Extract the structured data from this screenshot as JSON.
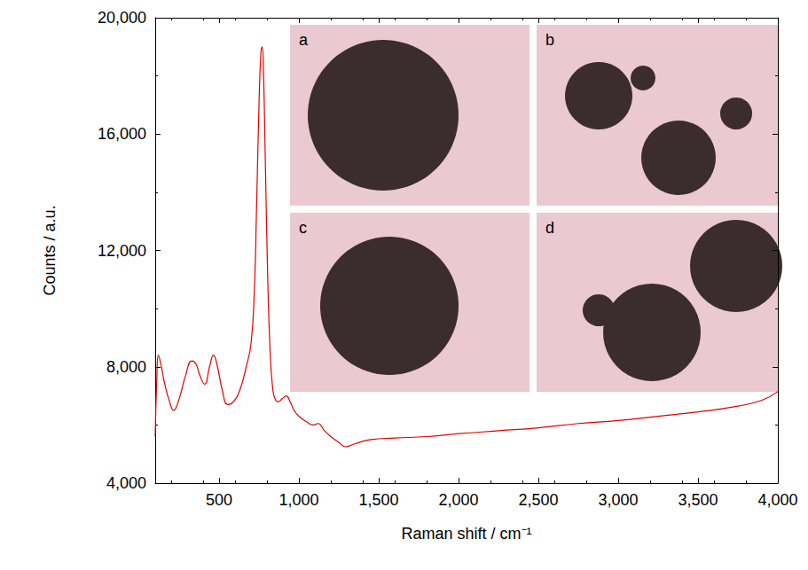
{
  "chart_data": {
    "type": "line",
    "x_label": "Raman shift / cm⁻¹",
    "y_label": "Counts / a.u.",
    "x": [
      100,
      110,
      120,
      135,
      160,
      190,
      215,
      250,
      290,
      330,
      355,
      380,
      410,
      440,
      465,
      490,
      520,
      555,
      590,
      630,
      670,
      700,
      720,
      735,
      750,
      762,
      770,
      778,
      790,
      805,
      820,
      835,
      850,
      870,
      895,
      920,
      945,
      970,
      1000,
      1050,
      1090,
      1120,
      1160,
      1200,
      1250,
      1290,
      1350,
      1450,
      1600,
      1800,
      2000,
      2250,
      2500,
      2750,
      3000,
      3250,
      3500,
      3750,
      3900,
      4000
    ],
    "values": [
      5600,
      7600,
      8400,
      8100,
      7400,
      6800,
      6500,
      6900,
      7700,
      8200,
      8100,
      7700,
      7400,
      8000,
      8400,
      8000,
      7200,
      6700,
      6800,
      7200,
      8000,
      8800,
      10500,
      13500,
      17000,
      18800,
      19000,
      18200,
      15000,
      11000,
      8500,
      7300,
      6900,
      6800,
      6900,
      7000,
      6800,
      6500,
      6300,
      6100,
      6000,
      6050,
      5800,
      5600,
      5400,
      5250,
      5350,
      5500,
      5550,
      5600,
      5700,
      5800,
      5900,
      6050,
      6150,
      6300,
      6450,
      6650,
      6850,
      7150
    ],
    "color": "#e00000",
    "xlim": [
      100,
      4000
    ],
    "xticks": [
      500,
      1000,
      1500,
      2000,
      2500,
      3000,
      3500,
      4000
    ],
    "ylim": [
      4000,
      20000
    ],
    "yticks": [
      4000,
      8000,
      12000,
      16000,
      20000
    ],
    "grid": false,
    "insets": [
      "a",
      "b",
      "c",
      "d"
    ]
  }
}
